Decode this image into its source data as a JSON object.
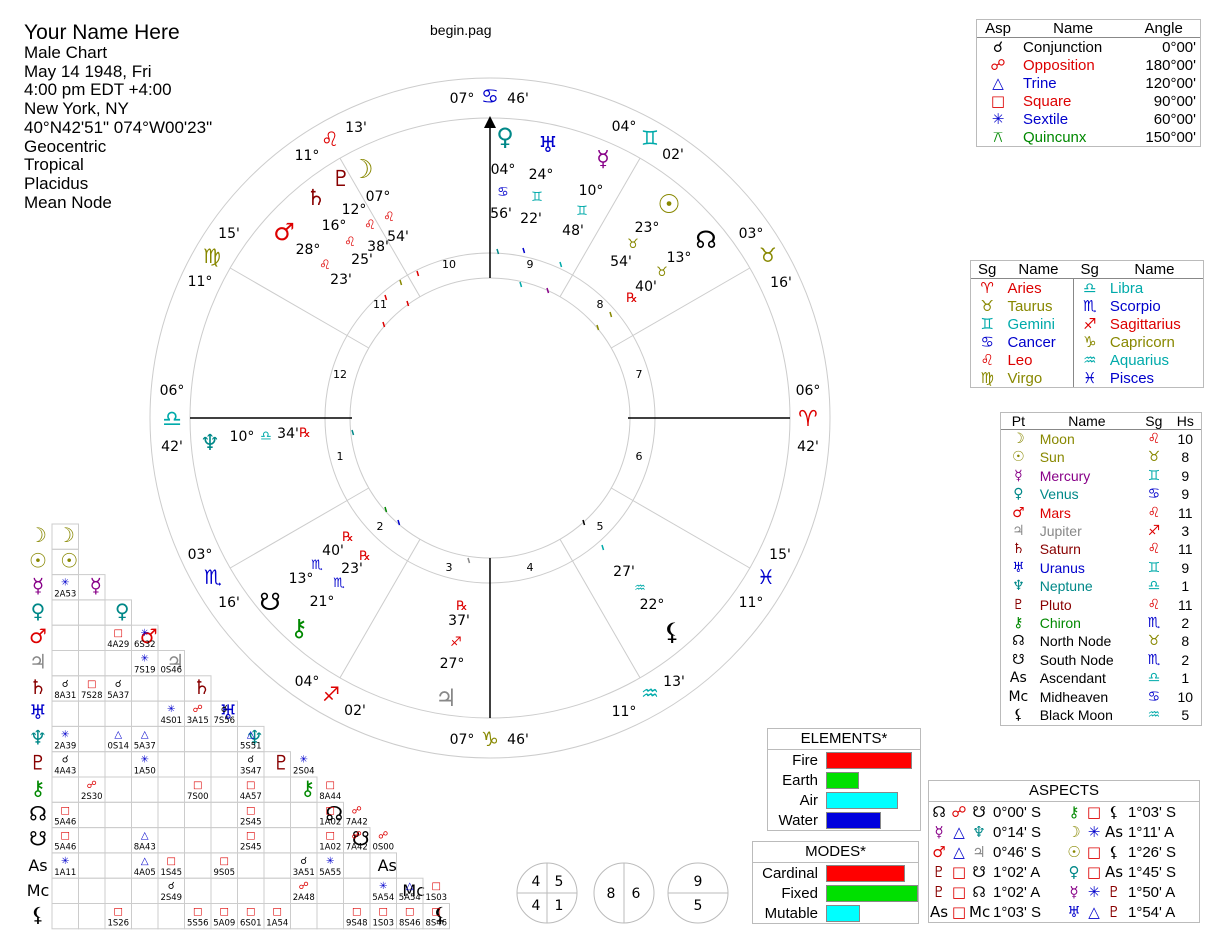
{
  "info": {
    "name": "Your Name Here",
    "lines": [
      "Male Chart",
      "May 14 1948, Fri",
      "4:00 pm  EDT +4:00",
      "New York, NY",
      "40°N42'51\" 074°W00'23\"",
      "Geocentric",
      "Tropical",
      "Placidus",
      "Mean Node"
    ]
  },
  "filename": "begin.pag",
  "colors": {
    "fire": "#ff0000",
    "earth": "#00e000",
    "air": "#00ffff",
    "water": "#0000dd",
    "blue": "#0000cc",
    "cyan": "#00aaaa",
    "olive": "#888800",
    "red": "#dd0000",
    "purple": "#880088",
    "teal": "#008888",
    "dark_red": "#880000",
    "green": "#008800",
    "gray": "#888888"
  },
  "wheel": {
    "cusps": {
      "mc": {
        "deg": "07°",
        "min": "46'"
      },
      "ic": {
        "deg": "07°",
        "min": "46'"
      },
      "asc": {
        "deg": "06°",
        "min": "42'"
      },
      "desc": {
        "deg": "06°",
        "min": "42'"
      },
      "h11": {
        "deg": "11°",
        "min": "13'"
      },
      "h12": {
        "deg": "15'",
        "min": "11°"
      },
      "h9": {
        "deg": "04°",
        "min": "02'"
      },
      "h8": {
        "deg": "03°",
        "min": "16'"
      },
      "h2": {
        "deg": "03°",
        "min": "16'"
      },
      "h3": {
        "deg": "04°",
        "min": "02'"
      },
      "h5": {
        "deg": "11°",
        "min": "13'"
      },
      "h6": {
        "deg": "15'",
        "min": "11°"
      }
    },
    "house_numbers": [
      "1",
      "2",
      "3",
      "4",
      "5",
      "6",
      "7",
      "8",
      "9",
      "10",
      "11",
      "12"
    ],
    "planets": {
      "venus": {
        "deg": "04°",
        "min": "56'"
      },
      "uranus": {
        "deg": "24°",
        "min": "22'"
      },
      "mercury": {
        "deg": "10°",
        "min": "48'"
      },
      "sun": {
        "deg": "23°",
        "min": "54'"
      },
      "node": {
        "deg": "13°",
        "min": "40'"
      },
      "moon": {
        "deg": "07°",
        "min": "38'"
      },
      "pluto": {
        "deg": "12°",
        "min": "54'"
      },
      "saturn": {
        "deg": "16°",
        "min": "25'"
      },
      "mars": {
        "deg": "28°",
        "min": "23'"
      },
      "neptune": {
        "deg": "10°",
        "min": "34'"
      },
      "snode": {
        "deg": "13°",
        "min": "40'"
      },
      "chiron": {
        "deg": "21°",
        "min": "23'"
      },
      "jupiter": {
        "deg": "27°",
        "min": "37'"
      },
      "blackmoon": {
        "deg": "22°",
        "min": "27'"
      }
    },
    "retro": "℞"
  },
  "aspects_legend": {
    "headers": [
      "Asp",
      "Name",
      "Angle"
    ],
    "rows": [
      {
        "glyph": "☌",
        "name": "Conjunction",
        "angle": "0°00'",
        "color": "#000000"
      },
      {
        "glyph": "☍",
        "name": "Opposition",
        "angle": "180°00'",
        "color": "#dd0000"
      },
      {
        "glyph": "△",
        "name": "Trine",
        "angle": "120°00'",
        "color": "#0000cc"
      },
      {
        "glyph": "□",
        "name": "Square",
        "angle": "90°00'",
        "color": "#dd0000"
      },
      {
        "glyph": "✳",
        "name": "Sextile",
        "angle": "60°00'",
        "color": "#0000cc"
      },
      {
        "glyph": "⚻",
        "name": "Quincunx",
        "angle": "150°00'",
        "color": "#008800"
      }
    ]
  },
  "signs_legend": {
    "headers": [
      "Sg",
      "Name",
      "Sg",
      "Name"
    ],
    "rows": [
      {
        "g1": "♈",
        "n1": "Aries",
        "c1": "#dd0000",
        "g2": "♎",
        "n2": "Libra",
        "c2": "#00aaaa"
      },
      {
        "g1": "♉",
        "n1": "Taurus",
        "c1": "#888800",
        "g2": "♏",
        "n2": "Scorpio",
        "c2": "#0000cc"
      },
      {
        "g1": "♊",
        "n1": "Gemini",
        "c1": "#00aaaa",
        "g2": "♐",
        "n2": "Sagittarius",
        "c2": "#dd0000"
      },
      {
        "g1": "♋",
        "n1": "Cancer",
        "c1": "#0000cc",
        "g2": "♑",
        "n2": "Capricorn",
        "c2": "#888800"
      },
      {
        "g1": "♌",
        "n1": "Leo",
        "c1": "#dd0000",
        "g2": "♒",
        "n2": "Aquarius",
        "c2": "#00aaaa"
      },
      {
        "g1": "♍",
        "n1": "Virgo",
        "c1": "#888800",
        "g2": "♓",
        "n2": "Pisces",
        "c2": "#0000cc"
      }
    ]
  },
  "planets_legend": {
    "headers": [
      "Pt",
      "Name",
      "Sg",
      "Hs"
    ],
    "rows": [
      {
        "glyph": "☽",
        "name": "Moon",
        "sign": "♌",
        "house": "10",
        "color": "#888800",
        "scolor": "#dd0000"
      },
      {
        "glyph": "☉",
        "name": "Sun",
        "sign": "♉",
        "house": "8",
        "color": "#888800",
        "scolor": "#888800"
      },
      {
        "glyph": "☿",
        "name": "Mercury",
        "sign": "♊",
        "house": "9",
        "color": "#880088",
        "scolor": "#00aaaa"
      },
      {
        "glyph": "♀",
        "name": "Venus",
        "sign": "♋",
        "house": "9",
        "color": "#008888",
        "scolor": "#0000cc"
      },
      {
        "glyph": "♂",
        "name": "Mars",
        "sign": "♌",
        "house": "11",
        "color": "#dd0000",
        "scolor": "#dd0000"
      },
      {
        "glyph": "♃",
        "name": "Jupiter",
        "sign": "♐",
        "house": "3",
        "color": "#888888",
        "scolor": "#dd0000"
      },
      {
        "glyph": "♄",
        "name": "Saturn",
        "sign": "♌",
        "house": "11",
        "color": "#880000",
        "scolor": "#dd0000"
      },
      {
        "glyph": "♅",
        "name": "Uranus",
        "sign": "♊",
        "house": "9",
        "color": "#0000cc",
        "scolor": "#00aaaa"
      },
      {
        "glyph": "♆",
        "name": "Neptune",
        "sign": "♎",
        "house": "1",
        "color": "#008888",
        "scolor": "#00aaaa"
      },
      {
        "glyph": "♇",
        "name": "Pluto",
        "sign": "♌",
        "house": "11",
        "color": "#880000",
        "scolor": "#dd0000"
      },
      {
        "glyph": "⚷",
        "name": "Chiron",
        "sign": "♏",
        "house": "2",
        "color": "#008800",
        "scolor": "#0000cc"
      },
      {
        "glyph": "☊",
        "name": "North Node",
        "sign": "♉",
        "house": "8",
        "color": "#000000",
        "scolor": "#888800"
      },
      {
        "glyph": "☋",
        "name": "South Node",
        "sign": "♏",
        "house": "2",
        "color": "#000000",
        "scolor": "#0000cc"
      },
      {
        "glyph": "As",
        "name": "Ascendant",
        "sign": "♎",
        "house": "1",
        "color": "#000000",
        "scolor": "#00aaaa"
      },
      {
        "glyph": "Mc",
        "name": "Midheaven",
        "sign": "♋",
        "house": "10",
        "color": "#000000",
        "scolor": "#0000cc"
      },
      {
        "glyph": "⚸",
        "name": "Black Moon",
        "sign": "♒",
        "house": "5",
        "color": "#000000",
        "scolor": "#00aaaa"
      }
    ]
  },
  "elements": {
    "title": "ELEMENTS*",
    "rows": [
      {
        "label": "Fire",
        "value": 0.95,
        "color": "#ff0000"
      },
      {
        "label": "Earth",
        "value": 0.35,
        "color": "#00e000"
      },
      {
        "label": "Air",
        "value": 0.8,
        "color": "#00ffff"
      },
      {
        "label": "Water",
        "value": 0.6,
        "color": "#0000dd"
      }
    ]
  },
  "modes": {
    "title": "MODES*",
    "rows": [
      {
        "label": "Cardinal",
        "value": 0.85,
        "color": "#ff0000"
      },
      {
        "label": "Fixed",
        "value": 1.0,
        "color": "#00e000"
      },
      {
        "label": "Mutable",
        "value": 0.35,
        "color": "#00ffff"
      }
    ]
  },
  "aspect_list": {
    "title": "ASPECTS",
    "rows": [
      [
        {
          "p1": "☊",
          "a": "☍",
          "p2": "☋",
          "v": "0°00' S",
          "c1": "#000",
          "ca": "#dd0000",
          "c2": "#000"
        },
        {
          "p1": "⚷",
          "a": "□",
          "p2": "⚸",
          "v": "1°03' S",
          "c1": "#008800",
          "ca": "#dd0000",
          "c2": "#000"
        }
      ],
      [
        {
          "p1": "☿",
          "a": "△",
          "p2": "♆",
          "v": "0°14' S",
          "c1": "#880088",
          "ca": "#0000cc",
          "c2": "#008888"
        },
        {
          "p1": "☽",
          "a": "✳",
          "p2": "As",
          "v": "1°11' A",
          "c1": "#888800",
          "ca": "#0000cc",
          "c2": "#000"
        }
      ],
      [
        {
          "p1": "♂",
          "a": "△",
          "p2": "♃",
          "v": "0°46' S",
          "c1": "#dd0000",
          "ca": "#0000cc",
          "c2": "#888888"
        },
        {
          "p1": "☉",
          "a": "□",
          "p2": "⚸",
          "v": "1°26' S",
          "c1": "#888800",
          "ca": "#dd0000",
          "c2": "#000"
        }
      ],
      [
        {
          "p1": "♇",
          "a": "□",
          "p2": "☋",
          "v": "1°02' A",
          "c1": "#880000",
          "ca": "#dd0000",
          "c2": "#000"
        },
        {
          "p1": "♀",
          "a": "□",
          "p2": "As",
          "v": "1°45' S",
          "c1": "#008888",
          "ca": "#dd0000",
          "c2": "#000"
        }
      ],
      [
        {
          "p1": "♇",
          "a": "□",
          "p2": "☊",
          "v": "1°02' A",
          "c1": "#880000",
          "ca": "#dd0000",
          "c2": "#000"
        },
        {
          "p1": "☿",
          "a": "✳",
          "p2": "♇",
          "v": "1°50' A",
          "c1": "#880088",
          "ca": "#0000cc",
          "c2": "#880000"
        }
      ],
      [
        {
          "p1": "As",
          "a": "□",
          "p2": "Mc",
          "v": "1°03' S",
          "c1": "#000",
          "ca": "#dd0000",
          "c2": "#000"
        },
        {
          "p1": "♅",
          "a": "△",
          "p2": "♇",
          "v": "1°54' A",
          "c1": "#0000cc",
          "ca": "#0000cc",
          "c2": "#880000"
        }
      ]
    ]
  },
  "quadrants": {
    "q1": [
      "4",
      "5",
      "4",
      "1"
    ],
    "q2": [
      "8",
      "6"
    ],
    "q3": [
      "9",
      "5"
    ]
  },
  "grid": {
    "planets": [
      {
        "g": "☽",
        "c": "#888800"
      },
      {
        "g": "☉",
        "c": "#888800"
      },
      {
        "g": "☿",
        "c": "#880088"
      },
      {
        "g": "♀",
        "c": "#008888"
      },
      {
        "g": "♂",
        "c": "#dd0000"
      },
      {
        "g": "♃",
        "c": "#888888"
      },
      {
        "g": "♄",
        "c": "#880000"
      },
      {
        "g": "♅",
        "c": "#0000cc"
      },
      {
        "g": "♆",
        "c": "#008888"
      },
      {
        "g": "♇",
        "c": "#880000"
      },
      {
        "g": "⚷",
        "c": "#008800"
      },
      {
        "g": "☊",
        "c": "#000000"
      },
      {
        "g": "☋",
        "c": "#000000"
      },
      {
        "g": "As",
        "c": "#000000"
      },
      {
        "g": "Mc",
        "c": "#000000"
      },
      {
        "g": "⚸",
        "c": "#000000"
      }
    ],
    "cells": [
      {
        "r": 2,
        "c": 0,
        "a": "✳",
        "t": "2A53",
        "ac": "#0000cc"
      },
      {
        "r": 4,
        "c": 2,
        "a": "□",
        "t": "4A29",
        "ac": "#dd0000"
      },
      {
        "r": 4,
        "c": 3,
        "a": "✳",
        "t": "6S32",
        "ac": "#0000cc"
      },
      {
        "r": 5,
        "c": 3,
        "a": "✳",
        "t": "7S19",
        "ac": "#0000cc"
      },
      {
        "r": 5,
        "c": 4,
        "a": "",
        "t": "0S46",
        "ac": "#0000cc"
      },
      {
        "r": 6,
        "c": 0,
        "a": "☌",
        "t": "8A31",
        "ac": "#000000"
      },
      {
        "r": 6,
        "c": 1,
        "a": "□",
        "t": "7S28",
        "ac": "#dd0000"
      },
      {
        "r": 6,
        "c": 2,
        "a": "☌",
        "t": "5A37",
        "ac": "#000000"
      },
      {
        "r": 7,
        "c": 4,
        "a": "✳",
        "t": "4S01",
        "ac": "#0000cc"
      },
      {
        "r": 7,
        "c": 5,
        "a": "☍",
        "t": "3A15",
        "ac": "#dd0000"
      },
      {
        "r": 7,
        "c": 6,
        "a": "☌",
        "t": "7S56",
        "ac": "#000000"
      },
      {
        "r": 8,
        "c": 0,
        "a": "✳",
        "t": "2A39",
        "ac": "#0000cc"
      },
      {
        "r": 8,
        "c": 2,
        "a": "△",
        "t": "0S14",
        "ac": "#0000cc"
      },
      {
        "r": 8,
        "c": 3,
        "a": "△",
        "t": "5A37",
        "ac": "#0000cc"
      },
      {
        "r": 8,
        "c": 7,
        "a": "△",
        "t": "5S51",
        "ac": "#0000cc"
      },
      {
        "r": 9,
        "c": 0,
        "a": "☌",
        "t": "4A43",
        "ac": "#000000"
      },
      {
        "r": 9,
        "c": 3,
        "a": "✳",
        "t": "1A50",
        "ac": "#0000cc"
      },
      {
        "r": 9,
        "c": 7,
        "a": "☌",
        "t": "3S47",
        "ac": "#000000"
      },
      {
        "r": 9,
        "c": 9,
        "a": "✳",
        "t": "2S04",
        "ac": "#0000cc"
      },
      {
        "r": 10,
        "c": 1,
        "a": "☍",
        "t": "2S30",
        "ac": "#dd0000"
      },
      {
        "r": 10,
        "c": 5,
        "a": "□",
        "t": "7S00",
        "ac": "#dd0000"
      },
      {
        "r": 10,
        "c": 7,
        "a": "□",
        "t": "4A57",
        "ac": "#dd0000"
      },
      {
        "r": 10,
        "c": 10,
        "a": "□",
        "t": "8A44",
        "ac": "#dd0000"
      },
      {
        "r": 11,
        "c": 0,
        "a": "□",
        "t": "5A46",
        "ac": "#dd0000"
      },
      {
        "r": 11,
        "c": 7,
        "a": "□",
        "t": "2S45",
        "ac": "#dd0000"
      },
      {
        "r": 11,
        "c": 10,
        "a": "□",
        "t": "1A02",
        "ac": "#dd0000"
      },
      {
        "r": 11,
        "c": 11,
        "a": "☍",
        "t": "7A42",
        "ac": "#dd0000"
      },
      {
        "r": 12,
        "c": 0,
        "a": "□",
        "t": "5A46",
        "ac": "#dd0000"
      },
      {
        "r": 12,
        "c": 3,
        "a": "△",
        "t": "8A43",
        "ac": "#0000cc"
      },
      {
        "r": 12,
        "c": 7,
        "a": "□",
        "t": "2S45",
        "ac": "#dd0000"
      },
      {
        "r": 12,
        "c": 10,
        "a": "□",
        "t": "1A02",
        "ac": "#dd0000"
      },
      {
        "r": 12,
        "c": 11,
        "a": "☍",
        "t": "7A42",
        "ac": "#dd0000"
      },
      {
        "r": 12,
        "c": 12,
        "a": "☍",
        "t": "0S00",
        "ac": "#dd0000"
      },
      {
        "r": 13,
        "c": 0,
        "a": "✳",
        "t": "1A11",
        "ac": "#0000cc"
      },
      {
        "r": 13,
        "c": 3,
        "a": "△",
        "t": "4A05",
        "ac": "#0000cc"
      },
      {
        "r": 13,
        "c": 4,
        "a": "□",
        "t": "1S45",
        "ac": "#dd0000"
      },
      {
        "r": 13,
        "c": 6,
        "a": "□",
        "t": "9S05",
        "ac": "#dd0000"
      },
      {
        "r": 13,
        "c": 9,
        "a": "☌",
        "t": "3A51",
        "ac": "#000000"
      },
      {
        "r": 13,
        "c": 10,
        "a": "✳",
        "t": "5A55",
        "ac": "#0000cc"
      },
      {
        "r": 14,
        "c": 4,
        "a": "☌",
        "t": "2S49",
        "ac": "#000000"
      },
      {
        "r": 14,
        "c": 9,
        "a": "☍",
        "t": "2A48",
        "ac": "#dd0000"
      },
      {
        "r": 14,
        "c": 12,
        "a": "✳",
        "t": "5A54",
        "ac": "#0000cc"
      },
      {
        "r": 14,
        "c": 13,
        "a": "△",
        "t": "5A54",
        "ac": "#0000cc"
      },
      {
        "r": 14,
        "c": 14,
        "a": "□",
        "t": "1S03",
        "ac": "#dd0000"
      },
      {
        "r": 15,
        "c": 2,
        "a": "□",
        "t": "1S26",
        "ac": "#dd0000"
      },
      {
        "r": 15,
        "c": 5,
        "a": "□",
        "t": "5S56",
        "ac": "#dd0000"
      },
      {
        "r": 15,
        "c": 6,
        "a": "□",
        "t": "5A09",
        "ac": "#dd0000"
      },
      {
        "r": 15,
        "c": 7,
        "a": "□",
        "t": "6S01",
        "ac": "#dd0000"
      },
      {
        "r": 15,
        "c": 8,
        "a": "□",
        "t": "1A54",
        "ac": "#dd0000"
      },
      {
        "r": 15,
        "c": 11,
        "a": "□",
        "t": "9S48",
        "ac": "#dd0000"
      },
      {
        "r": 15,
        "c": 12,
        "a": "□",
        "t": "1S03",
        "ac": "#dd0000"
      },
      {
        "r": 15,
        "c": 13,
        "a": "□",
        "t": "8S46",
        "ac": "#dd0000"
      },
      {
        "r": 15,
        "c": 14,
        "a": "□",
        "t": "8S46",
        "ac": "#dd0000"
      }
    ]
  }
}
